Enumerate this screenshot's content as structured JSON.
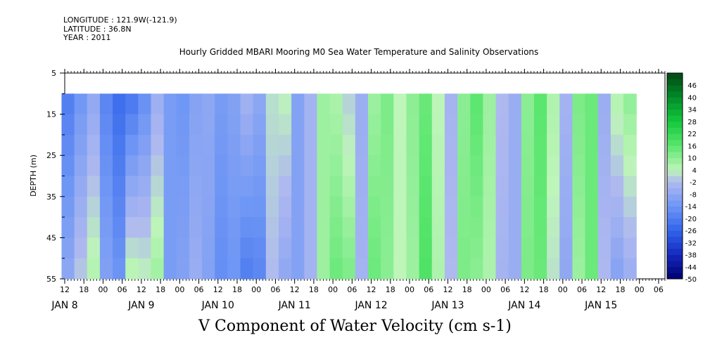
{
  "header": {
    "longitude": "LONGITUDE : 121.9W(-121.9)",
    "latitude": "LATITUDE : 36.8N",
    "year": "YEAR : 2011"
  },
  "chart_data": {
    "type": "heatmap",
    "title": "Hourly Gridded MBARI Mooring M0 Sea Water Temperature and Salinity Observations",
    "xlabel": "V Component of Water Velocity (cm s-1)",
    "ylabel": "DEPTH (m)",
    "ylim": [
      5,
      55
    ],
    "y_ticks": [
      5,
      15,
      25,
      35,
      45,
      55
    ],
    "x_hour_ticks": [
      "12",
      "18",
      "00",
      "06",
      "12",
      "18",
      "00",
      "06",
      "12",
      "18",
      "00",
      "06",
      "12",
      "18",
      "00",
      "06",
      "12",
      "18",
      "00",
      "06",
      "12",
      "18",
      "00",
      "06",
      "12",
      "18",
      "00",
      "06",
      "12",
      "18",
      "00",
      "06"
    ],
    "x_day_labels": [
      "JAN  8",
      "JAN  9",
      "JAN 10",
      "JAN 11",
      "JAN 12",
      "JAN 13",
      "JAN 14",
      "JAN 15"
    ],
    "data_depth_range": [
      10,
      55
    ],
    "colorbar": {
      "levels": [
        "46",
        "40",
        "34",
        "28",
        "22",
        "16",
        "10",
        "4",
        "-2",
        "-8",
        "-14",
        "-20",
        "-26",
        "-32",
        "-38",
        "-44",
        "-50"
      ],
      "range": [
        -50,
        52
      ]
    },
    "v_velocity_profile": {
      "time_hours_from_jan8_00": [
        11,
        15,
        19,
        23,
        27,
        31,
        35,
        39,
        43,
        47,
        51,
        55,
        59,
        63,
        67,
        71,
        75,
        79,
        83,
        87,
        91,
        95,
        99,
        103,
        107,
        111,
        115,
        119,
        123,
        127,
        131,
        135,
        139,
        143,
        147,
        151,
        155,
        159,
        163,
        167,
        171,
        175,
        179,
        183,
        187
      ],
      "surface_values": [
        -20,
        -14,
        -8,
        -18,
        -24,
        -22,
        -16,
        -6,
        -12,
        -14,
        -10,
        -8,
        -12,
        -10,
        -4,
        -8,
        2,
        4,
        -10,
        -4,
        8,
        6,
        0,
        -6,
        8,
        12,
        4,
        10,
        14,
        4,
        -4,
        10,
        16,
        8,
        -2,
        -6,
        10,
        16,
        6,
        -4,
        12,
        14,
        -6,
        6,
        10
      ],
      "bottom_values": [
        -8,
        0,
        6,
        -10,
        -14,
        6,
        4,
        8,
        -12,
        -10,
        -6,
        -10,
        -16,
        -14,
        -20,
        -18,
        -2,
        -8,
        -10,
        -4,
        8,
        14,
        12,
        -4,
        14,
        10,
        4,
        8,
        18,
        6,
        -2,
        12,
        10,
        6,
        -4,
        -6,
        12,
        14,
        2,
        -8,
        8,
        14,
        -2,
        -10,
        -6
      ]
    }
  }
}
